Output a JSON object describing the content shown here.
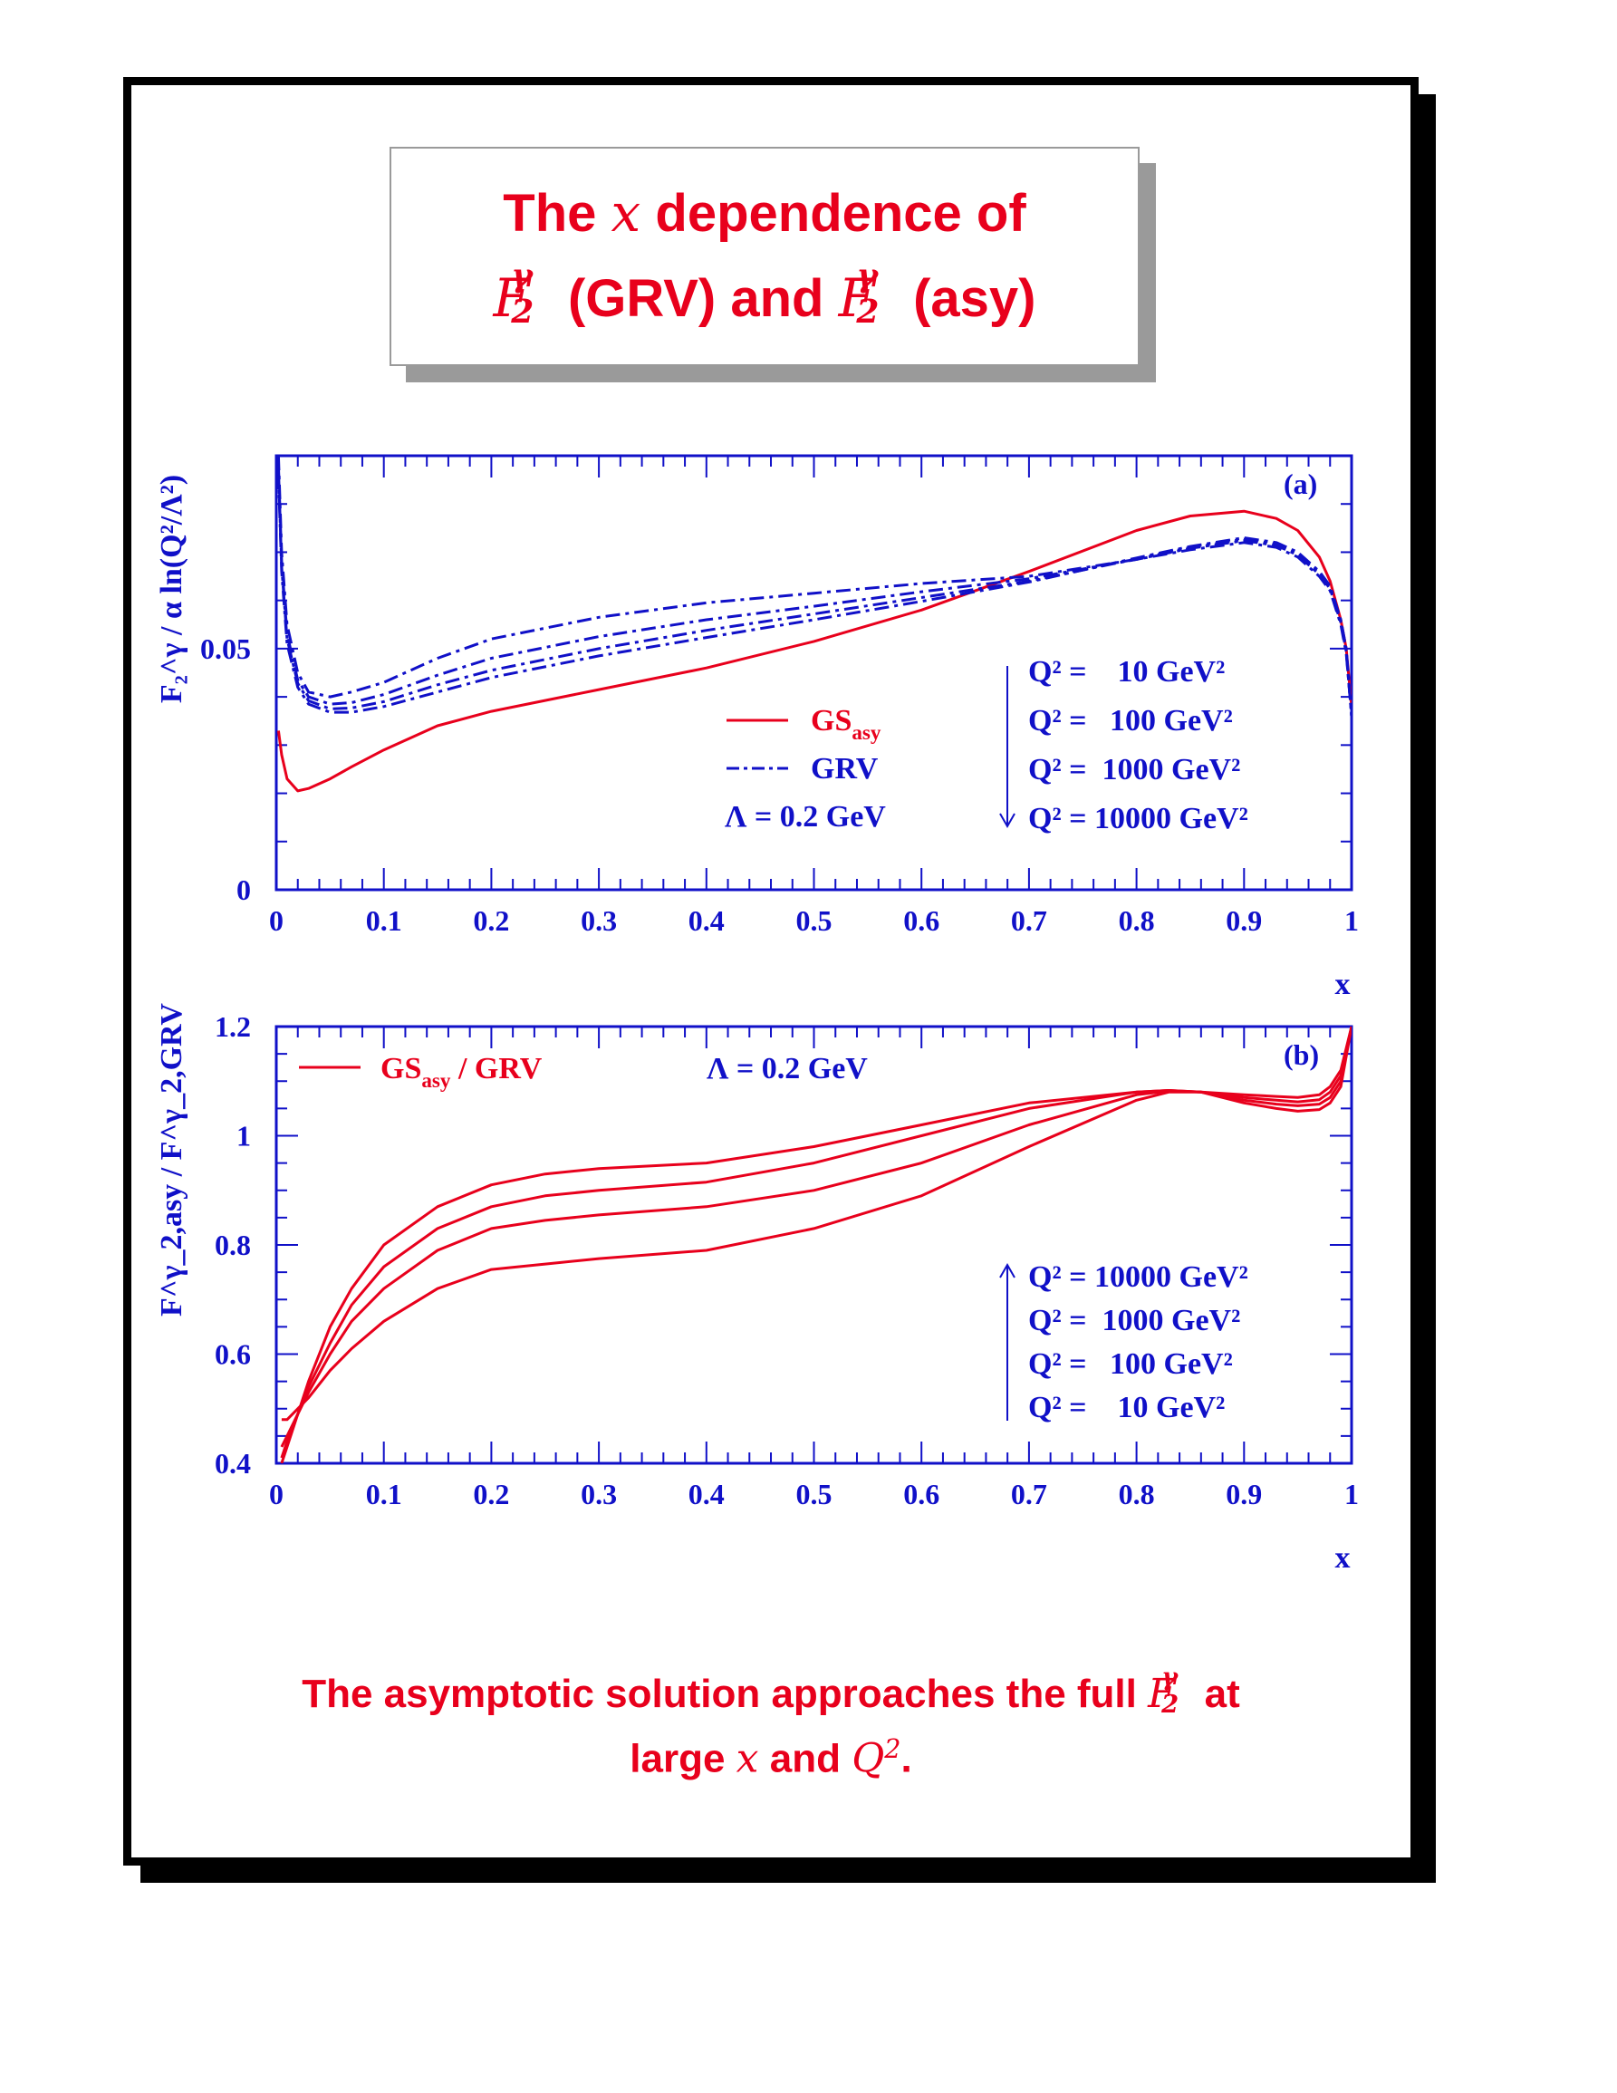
{
  "title": {
    "line1_a": "The",
    "line1_x": "x",
    "line1_b": "dependence of",
    "line2_grv": "(GRV) and",
    "line2_asy": "(asy)",
    "f_symbol": "F",
    "f_sub": "2",
    "f_sup": "γ"
  },
  "footer": {
    "line1_a": "The asymptotic solution approaches the full",
    "line1_b": "at",
    "line2_a": "large",
    "line2_x": "x",
    "line2_b": "and",
    "line2_q": "Q",
    "line2_q_exp": "2",
    "line2_end": "."
  },
  "colors": {
    "red": "#e8001c",
    "blue": "#1010c8",
    "black": "#000000",
    "shadow": "#9a9a9a"
  },
  "chart_data": [
    {
      "type": "line",
      "panel_label": "(a)",
      "xlabel": "x",
      "ylabel": "F₂^γ / α ln(Q²/Λ²)",
      "xlim": [
        0,
        1
      ],
      "ylim": [
        0,
        0.09
      ],
      "x_ticks": [
        "0",
        "0.1",
        "0.2",
        "0.3",
        "0.4",
        "0.5",
        "0.6",
        "0.7",
        "0.8",
        "0.9",
        "1"
      ],
      "y_ticks": [
        "0",
        "0.05"
      ],
      "legend": [
        {
          "label": "GS",
          "sub": "asy",
          "style": "solid",
          "color": "#e8001c"
        },
        {
          "label": "GRV",
          "style": "dash-dot",
          "color": "#1010c8"
        }
      ],
      "lambda_label": "Λ = 0.2 GeV",
      "q2_labels": [
        "Q² =    10 GeV²",
        "Q² =   100 GeV²",
        "Q² =  1000 GeV²",
        "Q² = 10000 GeV²"
      ],
      "arrow_direction": "down",
      "x": [
        0.002,
        0.005,
        0.01,
        0.02,
        0.03,
        0.05,
        0.07,
        0.1,
        0.15,
        0.2,
        0.3,
        0.4,
        0.5,
        0.6,
        0.7,
        0.8,
        0.85,
        0.9,
        0.93,
        0.95,
        0.97,
        0.98,
        0.99,
        0.995,
        1.0
      ],
      "series": [
        {
          "name": "GS_asy",
          "style": "solid",
          "values": [
            0.033,
            0.028,
            0.023,
            0.0205,
            0.021,
            0.023,
            0.0255,
            0.029,
            0.034,
            0.037,
            0.0415,
            0.046,
            0.0515,
            0.058,
            0.066,
            0.0745,
            0.0775,
            0.0785,
            0.077,
            0.0745,
            0.069,
            0.064,
            0.056,
            0.05,
            0.038
          ]
        },
        {
          "name": "Q² = 10 GeV²",
          "style": "dash-dot",
          "values": [
            0.09,
            0.07,
            0.055,
            0.045,
            0.041,
            0.04,
            0.041,
            0.043,
            0.048,
            0.052,
            0.0565,
            0.0595,
            0.0615,
            0.0635,
            0.065,
            0.0685,
            0.0705,
            0.072,
            0.071,
            0.069,
            0.065,
            0.062,
            0.055,
            0.049,
            0.036
          ]
        },
        {
          "name": "Q² = 100 GeV²",
          "style": "dash-dot",
          "values": [
            0.088,
            0.068,
            0.053,
            0.0435,
            0.04,
            0.0385,
            0.0388,
            0.0405,
            0.0445,
            0.048,
            0.0525,
            0.056,
            0.0588,
            0.0618,
            0.0645,
            0.0685,
            0.0708,
            0.0724,
            0.0714,
            0.0694,
            0.0654,
            0.0624,
            0.0554,
            0.0494,
            0.036
          ]
        },
        {
          "name": "Q² = 1000 GeV²",
          "style": "dash-dot",
          "values": [
            0.087,
            0.067,
            0.052,
            0.0428,
            0.0392,
            0.0375,
            0.0377,
            0.039,
            0.0425,
            0.0455,
            0.05,
            0.0538,
            0.0572,
            0.0606,
            0.064,
            0.0686,
            0.071,
            0.0727,
            0.0717,
            0.0697,
            0.0657,
            0.0627,
            0.0557,
            0.0497,
            0.036
          ]
        },
        {
          "name": "Q² = 10000 GeV²",
          "style": "dash-dot",
          "values": [
            0.086,
            0.066,
            0.051,
            0.042,
            0.0385,
            0.0368,
            0.0368,
            0.038,
            0.041,
            0.044,
            0.0485,
            0.0523,
            0.056,
            0.0598,
            0.0638,
            0.0688,
            0.0712,
            0.073,
            0.072,
            0.07,
            0.066,
            0.063,
            0.056,
            0.05,
            0.036
          ]
        }
      ]
    },
    {
      "type": "line",
      "panel_label": "(b)",
      "xlabel": "x",
      "ylabel": "F^γ_2,asy / F^γ_2,GRV",
      "xlim": [
        0,
        1
      ],
      "ylim": [
        0.4,
        1.2
      ],
      "x_ticks": [
        "0",
        "0.1",
        "0.2",
        "0.3",
        "0.4",
        "0.5",
        "0.6",
        "0.7",
        "0.8",
        "0.9",
        "1"
      ],
      "y_ticks": [
        "0.4",
        "0.6",
        "0.8",
        "1",
        "1.2"
      ],
      "legend": [
        {
          "label": "GS",
          "sub": "asy",
          "suffix": " / GRV",
          "style": "solid",
          "color": "#e8001c"
        }
      ],
      "lambda_label": "Λ = 0.2 GeV",
      "q2_labels": [
        "Q² = 10000 GeV²",
        "Q² =  1000 GeV²",
        "Q² =   100 GeV²",
        "Q² =    10 GeV²"
      ],
      "arrow_direction": "up",
      "x": [
        0.005,
        0.01,
        0.02,
        0.03,
        0.05,
        0.07,
        0.1,
        0.15,
        0.2,
        0.25,
        0.3,
        0.4,
        0.5,
        0.6,
        0.7,
        0.8,
        0.83,
        0.86,
        0.9,
        0.93,
        0.95,
        0.97,
        0.98,
        0.99,
        1.0
      ],
      "series": [
        {
          "name": "Q² = 10000 GeV²",
          "style": "solid",
          "values": [
            0.4,
            0.43,
            0.49,
            0.55,
            0.65,
            0.72,
            0.8,
            0.87,
            0.91,
            0.93,
            0.94,
            0.95,
            0.98,
            1.02,
            1.06,
            1.08,
            1.083,
            1.08,
            1.075,
            1.072,
            1.07,
            1.075,
            1.09,
            1.12,
            1.2
          ]
        },
        {
          "name": "Q² = 1000 GeV²",
          "style": "solid",
          "values": [
            0.41,
            0.44,
            0.49,
            0.54,
            0.62,
            0.69,
            0.76,
            0.83,
            0.87,
            0.89,
            0.9,
            0.915,
            0.95,
            1.0,
            1.05,
            1.08,
            1.083,
            1.08,
            1.07,
            1.065,
            1.062,
            1.066,
            1.08,
            1.11,
            1.2
          ]
        },
        {
          "name": "Q² = 100 GeV²",
          "style": "solid",
          "values": [
            0.43,
            0.45,
            0.49,
            0.53,
            0.6,
            0.66,
            0.72,
            0.79,
            0.83,
            0.845,
            0.855,
            0.87,
            0.9,
            0.95,
            1.02,
            1.075,
            1.082,
            1.08,
            1.065,
            1.058,
            1.055,
            1.058,
            1.07,
            1.1,
            1.2
          ]
        },
        {
          "name": "Q² = 10 GeV²",
          "style": "solid",
          "values": [
            0.48,
            0.48,
            0.5,
            0.52,
            0.57,
            0.61,
            0.66,
            0.72,
            0.755,
            0.765,
            0.775,
            0.79,
            0.83,
            0.89,
            0.98,
            1.065,
            1.08,
            1.08,
            1.06,
            1.05,
            1.045,
            1.048,
            1.06,
            1.09,
            1.2
          ]
        }
      ]
    }
  ]
}
